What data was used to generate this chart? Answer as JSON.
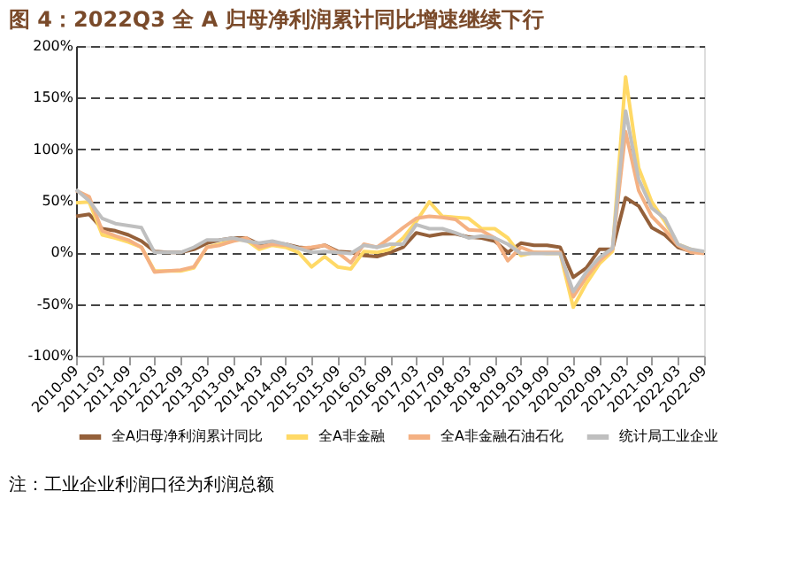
{
  "chart_data": {
    "type": "line",
    "title": "图 4：2022Q3 全 A 归母净利润累计同比增速继续下行",
    "categories": [
      "2010-09",
      null,
      "2011-03",
      null,
      "2011-09",
      null,
      "2012-03",
      null,
      "2012-09",
      null,
      "2013-03",
      null,
      "2013-09",
      null,
      "2014-03",
      null,
      "2014-09",
      null,
      "2015-03",
      null,
      "2015-09",
      null,
      "2016-03",
      null,
      "2016-09",
      null,
      "2017-03",
      null,
      "2017-09",
      null,
      "2018-03",
      null,
      "2018-09",
      null,
      "2019-03",
      null,
      "2019-09",
      null,
      "2020-03",
      null,
      "2020-09",
      null,
      "2021-03",
      null,
      "2021-09",
      null,
      "2022-03",
      null,
      "2022-09"
    ],
    "series": [
      {
        "name": "全A归母净利润累计同比",
        "color": "#94603a",
        "values": [
          35,
          37,
          23,
          21,
          17,
          11,
          1,
          0,
          0,
          3,
          9,
          12,
          14,
          14,
          8,
          9,
          8,
          5,
          4,
          7,
          1,
          0,
          -3,
          -4,
          0,
          5,
          19,
          16,
          18,
          18,
          15,
          14,
          11,
          0,
          9,
          7,
          7,
          5,
          -24,
          -15,
          3,
          3,
          53,
          45,
          24,
          17,
          5,
          1,
          0
        ]
      },
      {
        "name": "全A非金融",
        "color": "#ffd966",
        "values": [
          48,
          49,
          17,
          14,
          10,
          5,
          -18,
          -18,
          -18,
          -15,
          5,
          8,
          12,
          12,
          3,
          7,
          5,
          0,
          -14,
          -4,
          -14,
          -16,
          1,
          0,
          3,
          14,
          30,
          49,
          35,
          34,
          33,
          23,
          23,
          14,
          -3,
          0,
          -1,
          -1,
          -53,
          -30,
          -11,
          1,
          170,
          82,
          49,
          30,
          8,
          3,
          0
        ]
      },
      {
        "name": "全A非金融石油石化",
        "color": "#f4b183",
        "values": [
          60,
          54,
          21,
          16,
          12,
          5,
          -19,
          -18,
          -17,
          -14,
          5,
          7,
          11,
          14,
          5,
          8,
          7,
          4,
          5,
          7,
          0,
          -10,
          8,
          5,
          14,
          24,
          33,
          35,
          34,
          32,
          22,
          21,
          14,
          -8,
          5,
          0,
          0,
          0,
          -43,
          -24,
          -8,
          3,
          117,
          60,
          35,
          22,
          7,
          0,
          -1
        ]
      },
      {
        "name": "统计局工业企业",
        "color": "#bfbfbf",
        "values": [
          61,
          50,
          33,
          28,
          26,
          24,
          0,
          0,
          0,
          5,
          12,
          12,
          14,
          11,
          9,
          11,
          8,
          4,
          0,
          1,
          0,
          -1,
          7,
          5,
          8,
          8,
          27,
          23,
          23,
          19,
          14,
          16,
          14,
          8,
          -1,
          -1,
          -1,
          -1,
          -38,
          -19,
          -5,
          4,
          137,
          71,
          43,
          33,
          8,
          3,
          1
        ]
      }
    ],
    "ylim": [
      -100,
      200
    ],
    "yticks": [
      {
        "value": -100,
        "label": "-100%"
      },
      {
        "value": -50,
        "label": "-50%"
      },
      {
        "value": 0,
        "label": "0%"
      },
      {
        "value": 50,
        "label": "50%"
      },
      {
        "value": 100,
        "label": "100%"
      },
      {
        "value": 150,
        "label": "150%"
      },
      {
        "value": 200,
        "label": "200%"
      }
    ],
    "grid": "y",
    "legend": "bottom",
    "marker": "none",
    "line_style": "solid",
    "annotations": [
      "注：工业企业利润口径为利润总额"
    ]
  }
}
